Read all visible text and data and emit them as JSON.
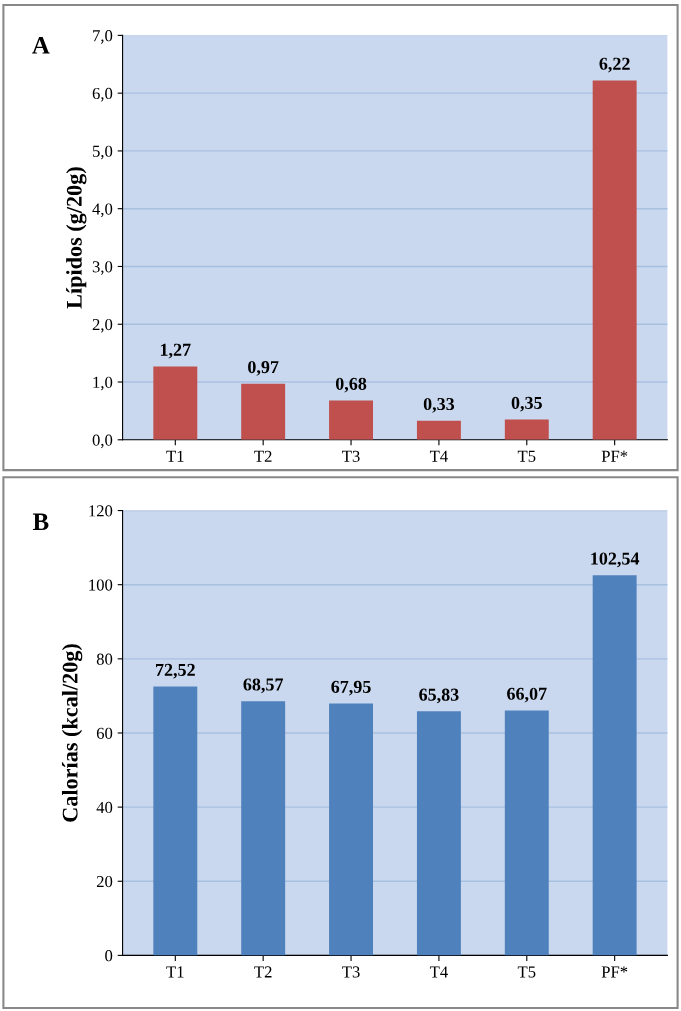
{
  "chart_data": [
    {
      "type": "bar",
      "title": "A",
      "ylabel": "Lípidos (g/20g)",
      "categories": [
        "T1",
        "T2",
        "T3",
        "T4",
        "T5",
        "PF*"
      ],
      "values": [
        1.27,
        0.97,
        0.68,
        0.33,
        0.35,
        6.22
      ],
      "color": "#c0504d",
      "value_labels": [
        "1,27",
        "0,97",
        "0,68",
        "0,33",
        "0,35",
        "6,22"
      ],
      "ylim": [
        0,
        7
      ],
      "yticks": [
        {
          "value": 0,
          "label": "0,0"
        },
        {
          "value": 1,
          "label": "1,0"
        },
        {
          "value": 2,
          "label": "2,0"
        },
        {
          "value": 3,
          "label": "3,0"
        },
        {
          "value": 4,
          "label": "4,0"
        },
        {
          "value": 5,
          "label": "5,0"
        },
        {
          "value": 6,
          "label": "6,0"
        },
        {
          "value": 7,
          "label": "7,0"
        }
      ],
      "grid": "y"
    },
    {
      "type": "bar",
      "title": "B",
      "ylabel": "Calorías (kcal/20g)",
      "categories": [
        "T1",
        "T2",
        "T3",
        "T4",
        "T5",
        "PF*"
      ],
      "values": [
        72.52,
        68.57,
        67.95,
        65.83,
        66.07,
        102.54
      ],
      "color": "#4f81bd",
      "value_labels": [
        "72,52",
        "68,57",
        "67,95",
        "65,83",
        "66,07",
        "102,54"
      ],
      "ylim": [
        0,
        120
      ],
      "yticks": [
        0,
        20,
        40,
        60,
        80,
        100,
        120
      ],
      "grid": "y"
    }
  ]
}
